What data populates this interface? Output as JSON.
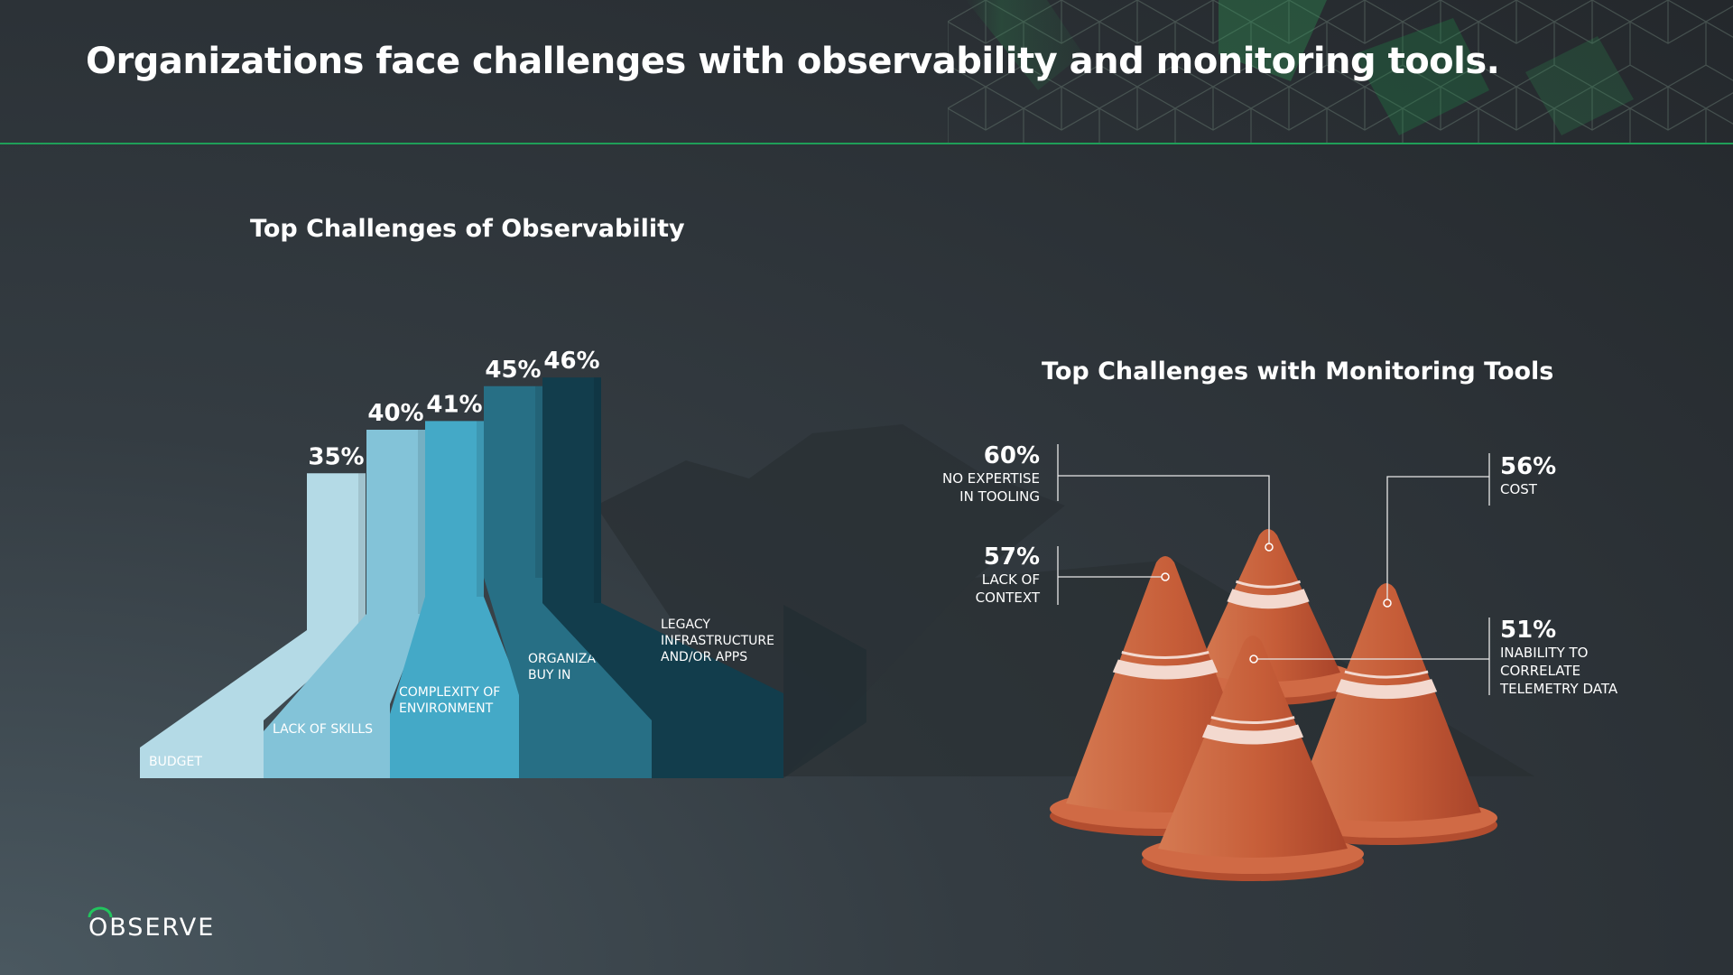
{
  "slide": {
    "title": "Organizations face challenges with observability and monitoring tools.",
    "logo": "OBSERVE",
    "colors": {
      "accent": "#1f9e58",
      "cone": "#cc5d3a",
      "stripe": "#f3d9cf"
    }
  },
  "chart_data": [
    {
      "type": "bar",
      "title": "Top Challenges of Observability",
      "categories": [
        "BUDGET",
        "LACK OF SKILLS",
        "COMPLEXITY OF ENVIRONMENT",
        "ORGANIZATIONAL BUY IN",
        "LEGACY INFRASTRUCTURE AND/OR APPS"
      ],
      "category_lines": [
        [
          "BUDGET"
        ],
        [
          "LACK OF SKILLS"
        ],
        [
          "COMPLEXITY OF",
          "ENVIRONMENT"
        ],
        [
          "ORGANIZATIONAL",
          "BUY IN"
        ],
        [
          "LEGACY",
          "INFRASTRUCTURE",
          "AND/OR APPS"
        ]
      ],
      "values": [
        35,
        40,
        41,
        45,
        46
      ],
      "value_labels": [
        "35%",
        "40%",
        "41%",
        "45%",
        "46%"
      ],
      "unit": "%",
      "colors": [
        "#b4dae6",
        "#83c3d8",
        "#44a9c7",
        "#276f85",
        "#123d4c"
      ]
    },
    {
      "type": "pictogram",
      "title": "Top Challenges with Monitoring Tools",
      "items": [
        {
          "label_lines": [
            "NO EXPERTISE",
            "IN TOOLING"
          ],
          "value": 60,
          "value_label": "60%"
        },
        {
          "label_lines": [
            "COST"
          ],
          "value": 56,
          "value_label": "56%"
        },
        {
          "label_lines": [
            "LACK OF",
            "CONTEXT"
          ],
          "value": 57,
          "value_label": "57%"
        },
        {
          "label_lines": [
            "INABILITY TO",
            "CORRELATE",
            "TELEMETRY DATA"
          ],
          "value": 51,
          "value_label": "51%"
        }
      ]
    }
  ]
}
